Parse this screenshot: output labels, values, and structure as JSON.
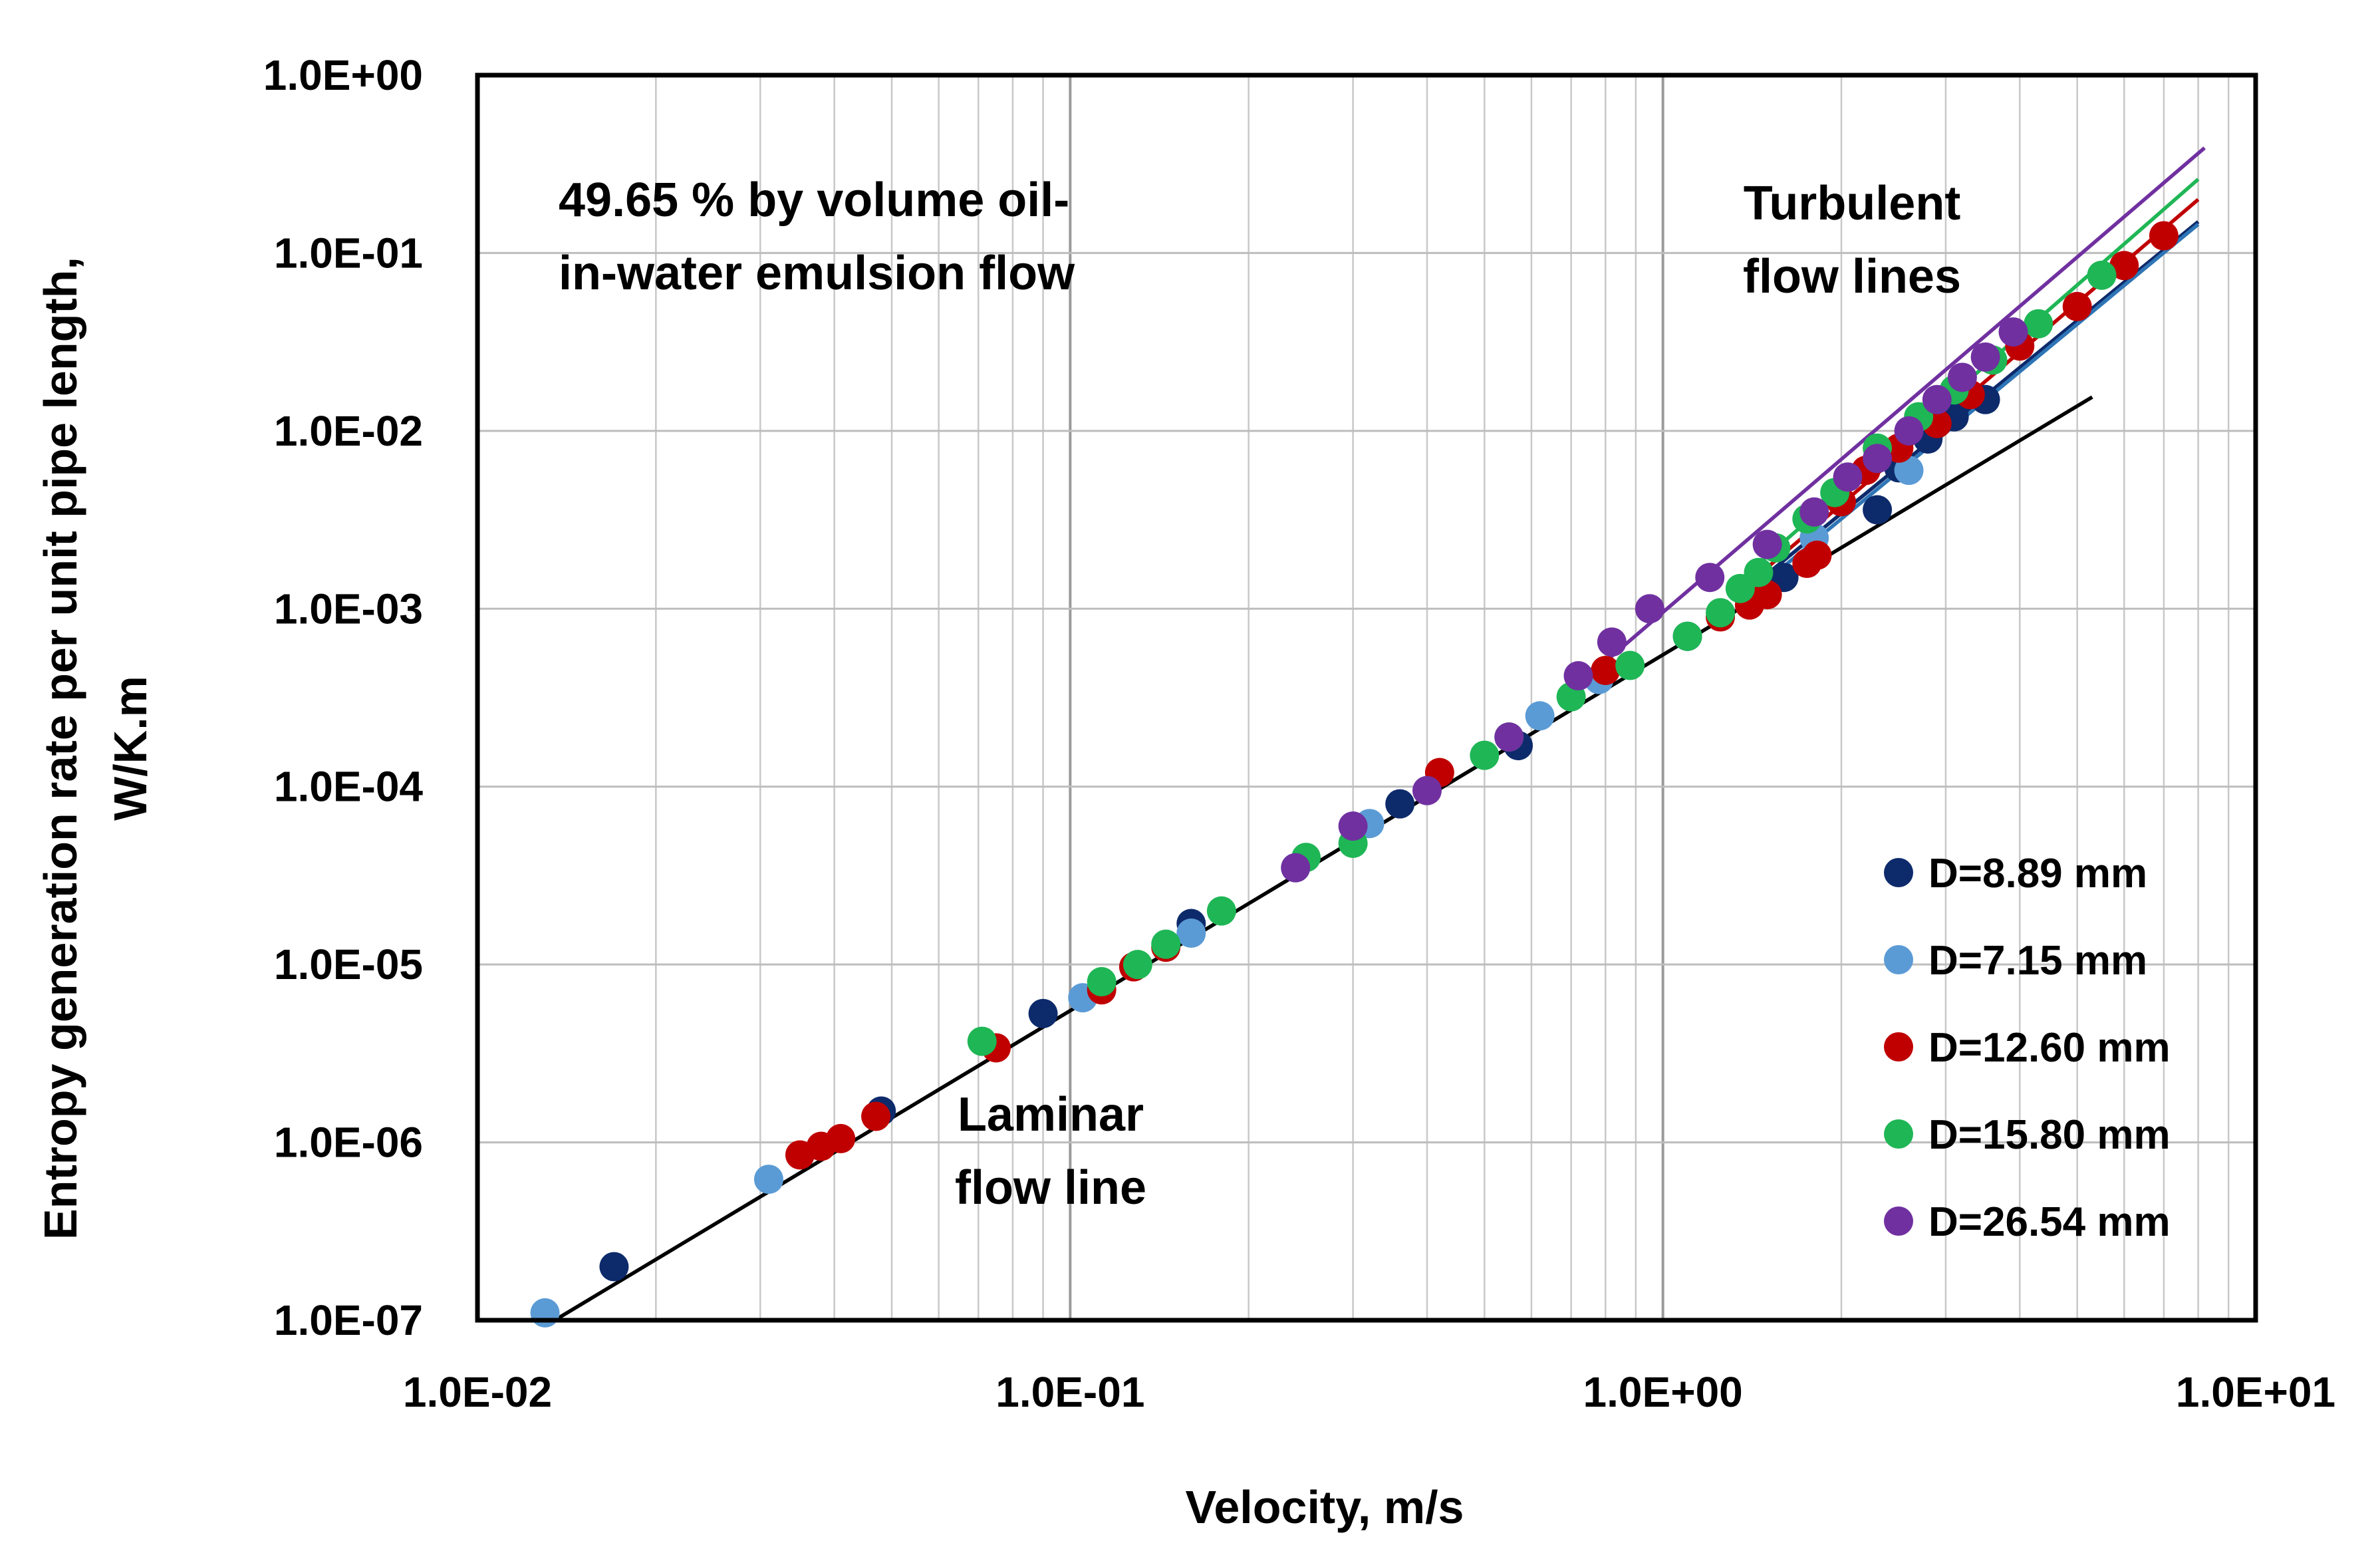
{
  "chart_data": {
    "type": "scatter",
    "x_scale": "log",
    "y_scale": "log",
    "xlabel": "Velocity, m/s",
    "ylabel_lines": [
      "Entropy generation rate per unit pipe length,",
      "W/K.m"
    ],
    "xlim": [
      0.01,
      10
    ],
    "ylim": [
      1e-07,
      1
    ],
    "x_ticks": [
      0.01,
      0.1,
      1,
      10
    ],
    "x_tick_labels": [
      "1.0E-02",
      "1.0E-01",
      "1.0E+00",
      "1.0E+01"
    ],
    "y_ticks": [
      1e-07,
      1e-06,
      1e-05,
      0.0001,
      0.001,
      0.01,
      0.1,
      1
    ],
    "y_tick_labels": [
      "1.0E-07",
      "1.0E-06",
      "1.0E-05",
      "1.0E-04",
      "1.0E-03",
      "1.0E-02",
      "1.0E-01",
      "1.0E+00"
    ],
    "grid": true,
    "legend_position": "bottom-right",
    "annotations": {
      "emulsion": [
        "49.65 % by volume  oil-",
        "in-water emulsion flow"
      ],
      "turbulent": [
        "Turbulent",
        "flow lines"
      ],
      "laminar": [
        "Laminar",
        "flow line"
      ]
    },
    "series": [
      {
        "name": "D=8.89 mm",
        "color": "#0d2a6b",
        "x": [
          0.017,
          0.048,
          0.09,
          0.16,
          0.36,
          0.57,
          1.1,
          1.6,
          2.3,
          2.5,
          2.8,
          3.1,
          3.5
        ],
        "y": [
          2e-07,
          1.5e-06,
          5.3e-06,
          1.7e-05,
          8e-05,
          0.00017,
          0.0007,
          0.0015,
          0.0036,
          0.0062,
          0.009,
          0.012,
          0.015
        ]
      },
      {
        "name": "D=7.15 mm",
        "color": "#5b9bd5",
        "x": [
          0.013,
          0.031,
          0.105,
          0.16,
          0.24,
          0.32,
          0.62,
          0.78,
          1.1,
          1.8,
          2.6
        ],
        "y": [
          1.1e-07,
          6.2e-07,
          6.5e-06,
          1.5e-05,
          3.5e-05,
          6.2e-05,
          0.00025,
          0.0004,
          0.0007,
          0.0025,
          0.006
        ]
      },
      {
        "name": "D=12.60 mm",
        "color": "#c00000",
        "x": [
          0.035,
          0.038,
          0.041,
          0.047,
          0.075,
          0.113,
          0.128,
          0.145,
          0.42,
          0.8,
          1.25,
          1.4,
          1.5,
          1.75,
          1.82,
          2.0,
          2.2,
          2.5,
          2.9,
          3.3,
          4.0,
          5.0,
          6.0,
          7.0
        ],
        "y": [
          8.5e-07,
          9.5e-07,
          1.05e-06,
          1.4e-06,
          3.4e-06,
          7.2e-06,
          9.7e-06,
          1.25e-05,
          0.00012,
          0.00045,
          0.0009,
          0.00105,
          0.0012,
          0.0018,
          0.002,
          0.004,
          0.006,
          0.008,
          0.011,
          0.016,
          0.03,
          0.05,
          0.085,
          0.125
        ]
      },
      {
        "name": "D=15.80 mm",
        "color": "#1fb655",
        "x": [
          0.071,
          0.113,
          0.13,
          0.145,
          0.18,
          0.25,
          0.3,
          0.5,
          0.55,
          0.7,
          0.88,
          1.1,
          1.25,
          1.35,
          1.45,
          1.55,
          1.75,
          1.95,
          2.3,
          2.7,
          3.1,
          3.6,
          4.3,
          5.5
        ],
        "y": [
          3.7e-06,
          8e-06,
          1e-05,
          1.3e-05,
          2e-05,
          4e-05,
          4.8e-05,
          0.00015,
          0.00019,
          0.00032,
          0.00048,
          0.0007,
          0.00095,
          0.0013,
          0.0016,
          0.0022,
          0.0032,
          0.0045,
          0.008,
          0.012,
          0.017,
          0.025,
          0.04,
          0.075
        ]
      },
      {
        "name": "D=26.54 mm",
        "color": "#7030a0",
        "x": [
          0.24,
          0.3,
          0.4,
          0.55,
          0.72,
          0.82,
          0.95,
          1.2,
          1.5,
          1.8,
          2.05,
          2.3,
          2.6,
          2.9,
          3.2,
          3.5,
          3.9
        ],
        "y": [
          3.5e-05,
          6e-05,
          9.5e-05,
          0.00019,
          0.00042,
          0.00065,
          0.001,
          0.0015,
          0.0023,
          0.0035,
          0.0055,
          0.007,
          0.01,
          0.015,
          0.02,
          0.026,
          0.036
        ]
      }
    ],
    "fit_lines": [
      {
        "name": "laminar",
        "color": "#000000",
        "x": [
          0.0135,
          5.3
        ],
        "y": [
          1e-07,
          0.0155
        ]
      },
      {
        "name": "turbulent-8.89",
        "color": "#0d2a6b",
        "x": [
          1.4,
          8
        ],
        "y": [
          0.0013,
          0.15
        ]
      },
      {
        "name": "turbulent-7.15",
        "color": "#2e75b6",
        "x": [
          1.4,
          8
        ],
        "y": [
          0.0012,
          0.145
        ]
      },
      {
        "name": "turbulent-12.60",
        "color": "#c00000",
        "x": [
          1.4,
          8
        ],
        "y": [
          0.0014,
          0.2
        ]
      },
      {
        "name": "turbulent-15.80",
        "color": "#1fb655",
        "x": [
          1.3,
          8
        ],
        "y": [
          0.0013,
          0.26
        ]
      },
      {
        "name": "turbulent-26.54",
        "color": "#7030a0",
        "x": [
          0.75,
          8.2
        ],
        "y": [
          0.00042,
          0.39
        ]
      }
    ]
  }
}
